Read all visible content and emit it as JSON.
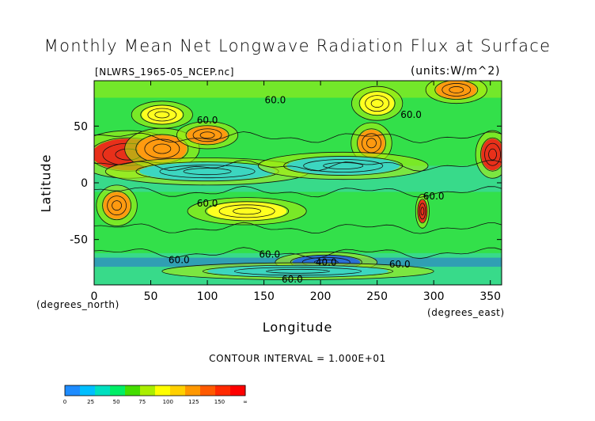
{
  "chart_data": {
    "type": "heatmap",
    "title": "Monthly Mean Net Longwave Radiation Flux at Surface",
    "file_label": "[NLWRS_1965-05_NCEP.nc]",
    "units_label": "(units:W/m^2)",
    "xlabel": "Longitude",
    "ylabel": "Latitude",
    "x_unit": "(degrees_east)",
    "y_unit": "(degrees_north)",
    "xlim": [
      0,
      360
    ],
    "ylim": [
      -90,
      90
    ],
    "x_ticks": [
      "0",
      "50",
      "100",
      "150",
      "200",
      "250",
      "300",
      "350"
    ],
    "x_tick_values": [
      0,
      50,
      100,
      150,
      200,
      250,
      300,
      350
    ],
    "y_ticks": [
      "50",
      "0",
      "-50"
    ],
    "y_tick_values": [
      50,
      0,
      -50
    ],
    "contour_interval_text": "CONTOUR INTERVAL = 1.000E+01",
    "contour_labels": [
      {
        "text": "60.0",
        "lon": 160,
        "lat": 73
      },
      {
        "text": "60.0",
        "lon": 100,
        "lat": 55
      },
      {
        "text": "60.0",
        "lon": 280,
        "lat": 60
      },
      {
        "text": "60.0",
        "lon": 100,
        "lat": -18
      },
      {
        "text": "60.0",
        "lon": 300,
        "lat": -12
      },
      {
        "text": "60.0",
        "lon": 155,
        "lat": -63
      },
      {
        "text": "60.0",
        "lon": 75,
        "lat": -68
      },
      {
        "text": "40.0",
        "lon": 205,
        "lat": -70
      },
      {
        "text": "60.0",
        "lon": 270,
        "lat": -72
      },
      {
        "text": "60.0",
        "lon": 175,
        "lat": -85
      }
    ],
    "colorbar": {
      "boundaries": [
        "0",
        "25",
        "50",
        "75",
        "100",
        "125",
        "150",
        "∞"
      ],
      "colors": [
        "#1e8cff",
        "#00bfff",
        "#00e0c0",
        "#00ee66",
        "#44dd00",
        "#aaee00",
        "#ffff00",
        "#ffd000",
        "#ff9800",
        "#ff5a00",
        "#ff2a00",
        "#ff0000"
      ]
    },
    "field_palette": {
      "low": "#2a6fd6",
      "cyan": "#3cd6c0",
      "green": "#33e04a",
      "yellowgreen": "#a8ee10",
      "yellow": "#ffff20",
      "orange": "#ff9a10",
      "red": "#e8301a"
    },
    "features": [
      {
        "lon": 30,
        "lat": 25,
        "level": "red",
        "rlon": 32,
        "rlat": 14
      },
      {
        "lon": 60,
        "lat": 30,
        "level": "orange",
        "rlon": 22,
        "rlat": 12
      },
      {
        "lon": 100,
        "lat": 42,
        "level": "orange",
        "rlon": 18,
        "rlat": 8
      },
      {
        "lon": 245,
        "lat": 35,
        "level": "orange",
        "rlon": 12,
        "rlat": 12
      },
      {
        "lon": 352,
        "lat": 25,
        "level": "red",
        "rlon": 10,
        "rlat": 14
      },
      {
        "lon": 320,
        "lat": 82,
        "level": "orange",
        "rlon": 18,
        "rlat": 8
      },
      {
        "lon": 20,
        "lat": -20,
        "level": "orange",
        "rlon": 12,
        "rlat": 12
      },
      {
        "lon": 135,
        "lat": -25,
        "level": "yellow",
        "rlon": 35,
        "rlat": 8
      },
      {
        "lon": 290,
        "lat": -25,
        "level": "red",
        "rlon": 4,
        "rlat": 10
      },
      {
        "lon": 205,
        "lat": -70,
        "level": "low",
        "rlon": 30,
        "rlat": 6
      },
      {
        "lon": 60,
        "lat": 60,
        "level": "yellow",
        "rlon": 18,
        "rlat": 8
      },
      {
        "lon": 250,
        "lat": 70,
        "level": "yellow",
        "rlon": 15,
        "rlat": 10
      },
      {
        "lon": 100,
        "lat": 10,
        "level": "cyan",
        "rlon": 60,
        "rlat": 8
      },
      {
        "lon": 220,
        "lat": 15,
        "level": "cyan",
        "rlon": 50,
        "rlat": 8
      },
      {
        "lon": 180,
        "lat": -78,
        "level": "cyan",
        "rlon": 80,
        "rlat": 5
      }
    ]
  }
}
